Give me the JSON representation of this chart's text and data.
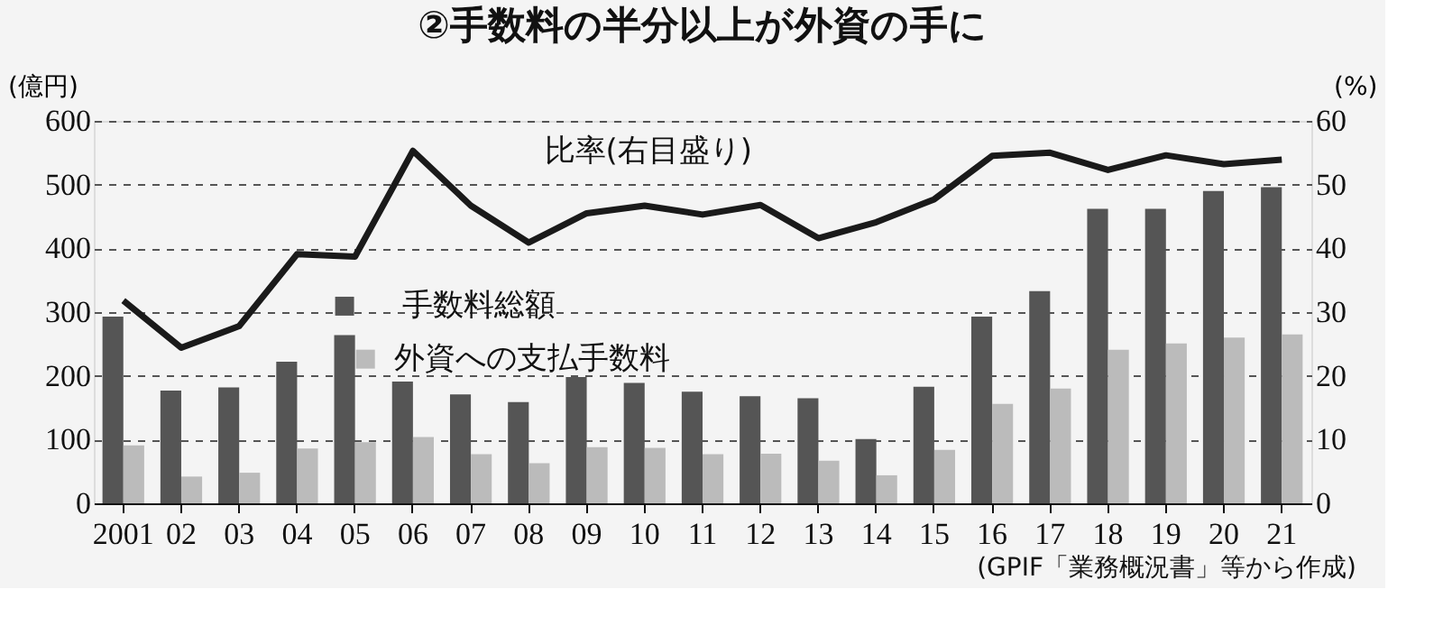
{
  "chart_data": {
    "type": "bar",
    "title": "②手数料の半分以上が外資の手に",
    "ylabel": "(億円)",
    "y2label": "(%)",
    "categories": [
      "2001",
      "02",
      "03",
      "04",
      "05",
      "06",
      "07",
      "08",
      "09",
      "10",
      "11",
      "12",
      "13",
      "14",
      "15",
      "16",
      "17",
      "18",
      "19",
      "20",
      "21"
    ],
    "series": [
      {
        "name": "手数料総額",
        "color": "#555555",
        "values": [
          293,
          177,
          182,
          222,
          264,
          191,
          171,
          159,
          198,
          189,
          175,
          168,
          165,
          101,
          183,
          293,
          333,
          462,
          462,
          490,
          496
        ]
      },
      {
        "name": "外資への支払手数料",
        "color": "#bbbbbb",
        "values": [
          91,
          42,
          48,
          86,
          96,
          104,
          77,
          63,
          88,
          87,
          77,
          78,
          67,
          44,
          84,
          156,
          180,
          241,
          251,
          260,
          265
        ]
      },
      {
        "name": "比率(右目盛り)",
        "type": "line",
        "axis": "y2",
        "color": "#1a1a1a",
        "values": [
          31.8,
          24.4,
          27.8,
          39.1,
          38.7,
          55.3,
          46.7,
          40.9,
          45.5,
          46.7,
          45.3,
          46.8,
          41.6,
          44.1,
          47.7,
          54.5,
          55.0,
          52.3,
          54.6,
          53.2,
          53.9
        ]
      }
    ],
    "ylim": [
      0,
      600
    ],
    "yticks": [
      0,
      100,
      200,
      300,
      400,
      500,
      600
    ],
    "y2lim": [
      0,
      60
    ],
    "y2ticks": [
      0,
      10,
      20,
      30,
      40,
      50,
      60
    ],
    "grid": "y",
    "legend": "center",
    "line_style": "solid",
    "marker": "none",
    "annotations": [
      "(GPIF「業務概況書」等から作成)"
    ]
  }
}
